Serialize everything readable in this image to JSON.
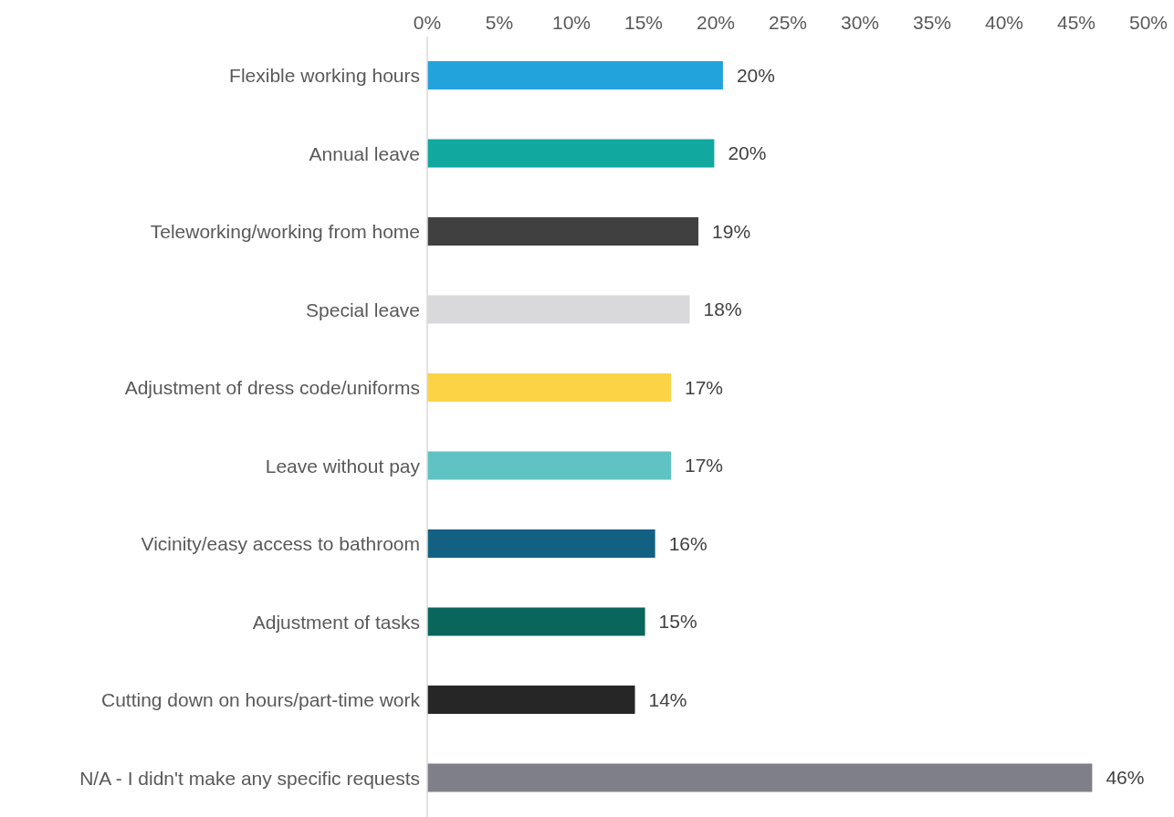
{
  "chart_data": {
    "type": "bar",
    "orientation": "horizontal",
    "categories": [
      "Flexible working hours",
      "Annual leave",
      "Teleworking/working from home",
      "Special leave",
      "Adjustment of dress code/uniforms",
      "Leave without pay",
      "Vicinity/easy access to bathroom",
      "Adjustment of tasks",
      "Cutting down on hours/part-time work",
      "N/A - I didn't make any specific requests"
    ],
    "values": [
      20.5,
      19.9,
      18.8,
      18.2,
      16.9,
      16.9,
      15.8,
      15.1,
      14.4,
      46.1
    ],
    "value_labels": [
      "20%",
      "20%",
      "19%",
      "18%",
      "17%",
      "17%",
      "16%",
      "15%",
      "14%",
      "46%"
    ],
    "colors": [
      "#22a3dc",
      "#10a89f",
      "#404040",
      "#d9d9db",
      "#fdd346",
      "#5fc3c4",
      "#126183",
      "#09665c",
      "#262626",
      "#7f7f89"
    ],
    "xlim": [
      0,
      50
    ],
    "xticks": [
      {
        "value": 0,
        "label": "0%"
      },
      {
        "value": 5,
        "label": "5%"
      },
      {
        "value": 10,
        "label": "10%"
      },
      {
        "value": 15,
        "label": "15%"
      },
      {
        "value": 20,
        "label": "20%"
      },
      {
        "value": 25,
        "label": "25%"
      },
      {
        "value": 30,
        "label": "30%"
      },
      {
        "value": 35,
        "label": "35%"
      },
      {
        "value": 40,
        "label": "40%"
      },
      {
        "value": 45,
        "label": "45%"
      },
      {
        "value": 50,
        "label": "50%"
      }
    ],
    "grid": false,
    "legend": false
  }
}
